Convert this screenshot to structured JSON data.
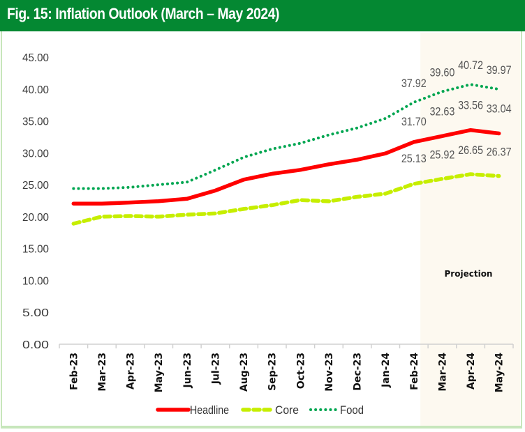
{
  "header": {
    "title": "Fig. 15: Inflation Outlook (March – May 2024)"
  },
  "colors": {
    "header_bg": "#048832",
    "headline": "#ff0000",
    "core": "#c6ee00",
    "food": "#00a651",
    "projection_bg": "#fdf9f0"
  },
  "chart_data": {
    "type": "line",
    "title": "Fig. 15: Inflation Outlook (March – May 2024)",
    "xlabel": "",
    "ylabel": "",
    "ylim": [
      0,
      45
    ],
    "yticks": [
      "0.00",
      "5.00",
      "10.00",
      "15.00",
      "20.00",
      "25.00",
      "30.00",
      "35.00",
      "40.00",
      "45.00"
    ],
    "grid": false,
    "legend": "bottom",
    "categories": [
      "Feb-23",
      "Mar-23",
      "Apr-23",
      "May-23",
      "Jun-23",
      "Jul-23",
      "Aug-23",
      "Sep-23",
      "Oct-23",
      "Nov-23",
      "Dec-23",
      "Jan-24",
      "Feb-24",
      "Mar-24",
      "Apr-24",
      "May-24"
    ],
    "projection": {
      "label": "Projection",
      "from": "Mar-24",
      "to": "May-24"
    },
    "series": [
      {
        "name": "Headline",
        "style": "solid",
        "values": [
          22.04,
          22.04,
          22.22,
          22.41,
          22.79,
          24.08,
          25.8,
          26.72,
          27.33,
          28.2,
          28.92,
          29.9,
          31.7,
          32.63,
          33.56,
          33.04
        ],
        "labels": {
          "12": "31.70",
          "13": "32.63",
          "14": "33.56",
          "15": "33.04"
        }
      },
      {
        "name": "Core",
        "style": "dashed",
        "values": [
          18.9,
          20.0,
          20.1,
          20.0,
          20.3,
          20.5,
          21.2,
          21.8,
          22.6,
          22.4,
          23.1,
          23.6,
          25.13,
          25.92,
          26.65,
          26.37
        ],
        "labels": {
          "12": "25.13",
          "13": "25.92",
          "14": "26.65",
          "15": "26.37"
        }
      },
      {
        "name": "Food",
        "style": "dotted",
        "values": [
          24.4,
          24.4,
          24.6,
          25.0,
          25.4,
          27.3,
          29.3,
          30.6,
          31.5,
          32.8,
          33.9,
          35.4,
          37.92,
          39.6,
          40.72,
          39.97
        ],
        "labels": {
          "12": "37.92",
          "13": "39.60",
          "14": "40.72",
          "15": "39.97"
        }
      }
    ]
  }
}
